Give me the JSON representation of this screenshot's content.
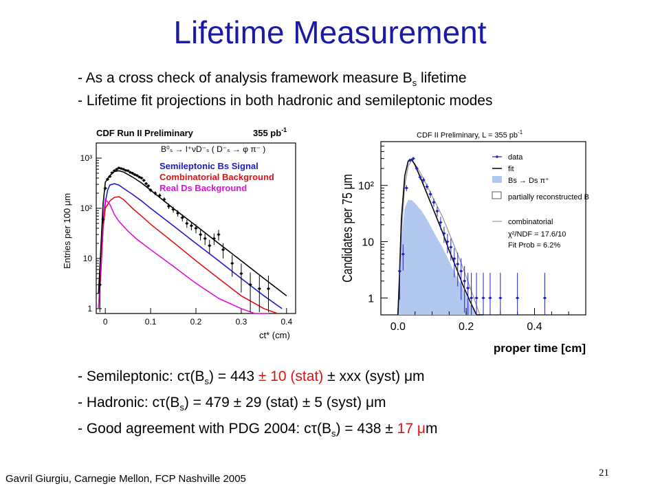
{
  "slide": {
    "title": "Lifetime Measurement",
    "intro": [
      {
        "pre": "- As a cross check of analysis framework measure B",
        "sub": "s",
        "post": " lifetime"
      },
      {
        "pre": "- Lifetime fit projections in both hadronic and semileptonic modes"
      }
    ],
    "results": {
      "semileptonic": {
        "a": "- Semileptonic: c",
        "tau": "τ",
        "b": "(B",
        "sub": "s",
        "c": ") = 443 ",
        "pm1": "±",
        "stat": " 10 (stat) ",
        "pm2": "±",
        "syst": " xxx (syst) ",
        "mu": "μ",
        "unit": "m"
      },
      "hadronic": {
        "a": "- Hadronic: c",
        "tau": "τ",
        "b": "(B",
        "sub": "s",
        "c": ") = 479 ",
        "pm1": "±",
        "stat": " 29 (stat) ",
        "pm2": "±",
        "syst": " 5 (syst) ",
        "mu": "μ",
        "unit": "m"
      },
      "pdg": {
        "a": "- Good agreement with PDG 2004: c",
        "tau": "τ",
        "b": "(B",
        "sub": "s",
        "c": ") = 438 ",
        "pm1": "±",
        "err": " 17 ",
        "mu": "μ",
        "unit": "m"
      }
    },
    "footer": "Gavril Giurgiu, Carnegie Mellon, FCP Nashville 2005",
    "page_number": "21"
  },
  "chart_data": [
    {
      "type": "line",
      "title": "CDF Run II Preliminary",
      "lumi": "355 pb",
      "lumi_sup": "-1",
      "decay": "B⁰ₛ → l⁺νD⁻ₛ ( D⁻ₛ → φ π⁻ )",
      "xlabel": "ct* (cm)",
      "ylabel": "Entries per 100 μm",
      "xlim": [
        -0.02,
        0.42
      ],
      "ylim": [
        0.8,
        2000
      ],
      "yscale": "log",
      "xticks": [
        "0",
        "0.1",
        "0.2",
        "0.3",
        "0.4"
      ],
      "yticks": [
        "1",
        "10",
        "10²",
        "10³"
      ],
      "legend": [
        "Semileptonic Bs Signal",
        "Combinatorial Background",
        "Real Ds Background"
      ],
      "colors": {
        "total": "#000000",
        "signal": "#1a1ad0",
        "comb": "#e01010",
        "real": "#e010e0"
      },
      "series": [
        {
          "name": "Semileptonic Bs Signal",
          "x": [
            -0.015,
            -0.01,
            -0.005,
            0.0,
            0.005,
            0.01,
            0.02,
            0.03,
            0.04,
            0.06,
            0.08,
            0.1,
            0.15,
            0.2,
            0.25,
            0.3,
            0.35,
            0.39
          ],
          "y": [
            1.0,
            5,
            40,
            130,
            230,
            290,
            310,
            290,
            250,
            190,
            140,
            100,
            45,
            20,
            9,
            4,
            1.8,
            1.0
          ]
        },
        {
          "name": "Combinatorial Background",
          "x": [
            -0.015,
            -0.01,
            -0.005,
            0.0,
            0.01,
            0.02,
            0.03,
            0.04,
            0.06,
            0.08,
            0.1,
            0.15,
            0.2,
            0.25,
            0.3,
            0.35,
            0.38
          ],
          "y": [
            1.0,
            5,
            40,
            100,
            140,
            165,
            170,
            150,
            100,
            70,
            48,
            21,
            9,
            4,
            1.8,
            1.0,
            0.8
          ]
        },
        {
          "name": "Real Ds Background",
          "x": [
            -0.015,
            -0.01,
            -0.005,
            0.0,
            0.01,
            0.02,
            0.03,
            0.05,
            0.07,
            0.1,
            0.15,
            0.2,
            0.25,
            0.3,
            0.33,
            0.36
          ],
          "y": [
            1.0,
            8,
            60,
            150,
            120,
            75,
            55,
            35,
            24,
            15,
            7,
            3.2,
            1.6,
            1.0,
            0.8,
            0.7
          ]
        },
        {
          "name": "total",
          "x": [
            -0.015,
            -0.01,
            -0.005,
            0.0,
            0.01,
            0.02,
            0.03,
            0.04,
            0.06,
            0.08,
            0.1,
            0.15,
            0.2,
            0.25,
            0.3,
            0.35,
            0.4
          ],
          "y": [
            2,
            15,
            120,
            330,
            450,
            540,
            560,
            530,
            420,
            320,
            230,
            100,
            45,
            20,
            9,
            4,
            1.8
          ]
        },
        {
          "name": "data",
          "x": [
            -0.012,
            -0.005,
            0.0,
            0.005,
            0.01,
            0.015,
            0.02,
            0.025,
            0.03,
            0.035,
            0.04,
            0.045,
            0.05,
            0.055,
            0.06,
            0.065,
            0.07,
            0.075,
            0.08,
            0.085,
            0.09,
            0.095,
            0.1,
            0.11,
            0.12,
            0.13,
            0.14,
            0.15,
            0.16,
            0.17,
            0.18,
            0.19,
            0.2,
            0.21,
            0.22,
            0.23,
            0.24,
            0.25,
            0.26,
            0.28,
            0.3,
            0.32,
            0.34,
            0.36
          ],
          "y": [
            3,
            60,
            250,
            380,
            430,
            510,
            560,
            600,
            640,
            620,
            600,
            570,
            560,
            520,
            500,
            470,
            450,
            420,
            400,
            360,
            310,
            280,
            230,
            200,
            180,
            150,
            110,
            95,
            80,
            65,
            50,
            45,
            40,
            30,
            25,
            18,
            25,
            30,
            15,
            8,
            5,
            3,
            2.5,
            2.5
          ]
        }
      ]
    },
    {
      "type": "line",
      "title": "CDF II Preliminary, L = 355 pb",
      "title_sup": "-1",
      "xlabel": "proper time [cm]",
      "ylabel": "Candidates per 75 μm",
      "xlim": [
        -0.05,
        0.55
      ],
      "ylim": [
        0.5,
        600
      ],
      "yscale": "log",
      "xticks": [
        "0.0",
        "0.2",
        "0.4"
      ],
      "yticks": [
        "1",
        "10",
        "10²"
      ],
      "legend": [
        "data",
        "fit",
        "Bs → Ds π⁺",
        "partially reconstructed B",
        "combinatorial"
      ],
      "fit_text": [
        "χ²/NDF = 17.6/10",
        "Fit Prob =  6.2%"
      ],
      "colors": {
        "data": "#2020c0",
        "fit": "#000000",
        "signal_fill": "#b3c8f0",
        "partial": "#555555",
        "comb": "#999999"
      },
      "series": [
        {
          "name": "Bs → Ds π⁺",
          "x": [
            0.0,
            0.005,
            0.01,
            0.02,
            0.03,
            0.04,
            0.05,
            0.07,
            0.09,
            0.11,
            0.13,
            0.15,
            0.17,
            0.19,
            0.21,
            0.23
          ],
          "y": [
            0.5,
            2,
            12,
            40,
            55,
            55,
            48,
            35,
            22,
            13,
            8,
            4.5,
            2.5,
            1.5,
            0.8,
            0.5
          ]
        },
        {
          "name": "fit",
          "x": [
            0.0,
            0.005,
            0.01,
            0.02,
            0.03,
            0.04,
            0.05,
            0.07,
            0.09,
            0.11,
            0.13,
            0.15,
            0.17,
            0.19,
            0.21,
            0.23,
            0.25
          ],
          "y": [
            0.5,
            3,
            25,
            150,
            270,
            290,
            230,
            120,
            60,
            30,
            15,
            7,
            3.5,
            1.7,
            0.9,
            0.5,
            0.3
          ]
        },
        {
          "name": "combinatorial",
          "x": [
            0.0,
            0.01,
            0.02,
            0.03,
            0.04,
            0.05,
            0.07,
            0.1,
            0.13,
            0.16,
            0.19,
            0.22,
            0.24
          ],
          "y": [
            0.5,
            15,
            100,
            220,
            280,
            240,
            150,
            65,
            28,
            10,
            3.5,
            1.1,
            0.5
          ]
        },
        {
          "name": "data",
          "x": [
            0.005,
            0.015,
            0.025,
            0.035,
            0.045,
            0.055,
            0.065,
            0.075,
            0.085,
            0.095,
            0.105,
            0.115,
            0.125,
            0.135,
            0.145,
            0.155,
            0.165,
            0.175,
            0.185,
            0.195,
            0.205,
            0.215,
            0.23,
            0.25,
            0.27,
            0.3,
            0.35,
            0.43
          ],
          "y": [
            3,
            6,
            90,
            280,
            300,
            200,
            140,
            125,
            95,
            70,
            50,
            35,
            22,
            14,
            10,
            8,
            5,
            4,
            3,
            2,
            1.5,
            1,
            1,
            1,
            1,
            1,
            1,
            1
          ]
        }
      ]
    }
  ]
}
